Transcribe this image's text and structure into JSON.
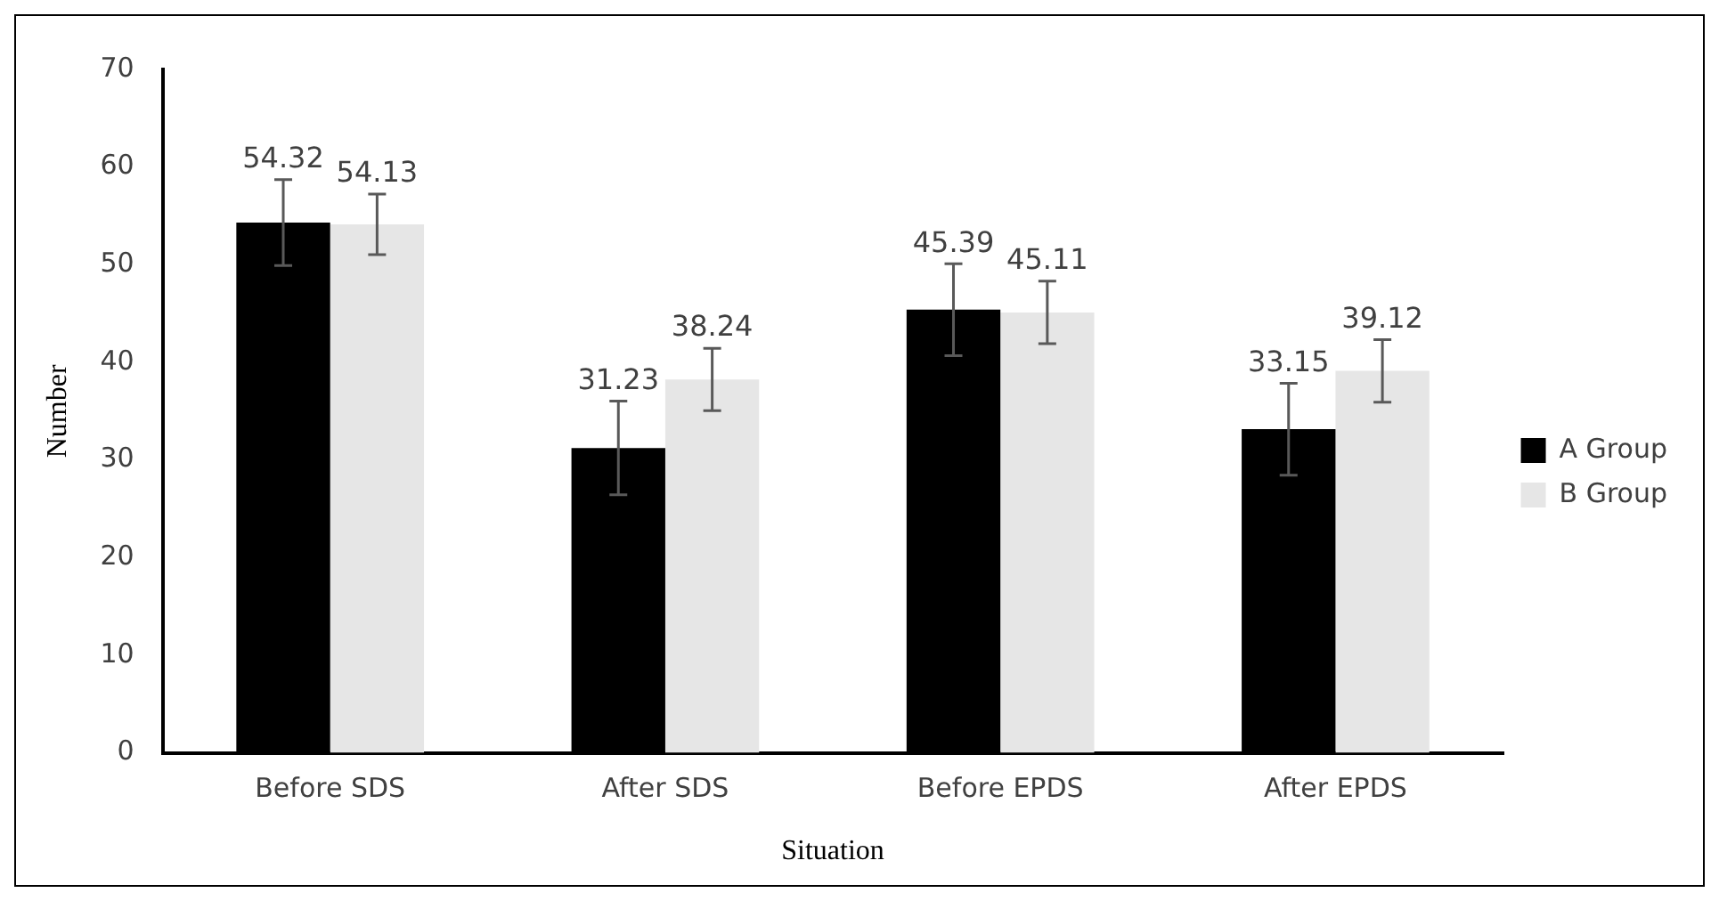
{
  "chart_data": {
    "type": "bar",
    "xlabel": "Situation",
    "ylabel": "Number",
    "categories": [
      "Before SDS",
      "After SDS",
      "Before EPDS",
      "After EPDS"
    ],
    "series": [
      {
        "name": "A Group",
        "color": "#000000",
        "values": [
          54.32,
          31.23,
          45.39,
          33.15
        ],
        "errors": [
          4.4,
          4.8,
          4.7,
          4.7
        ]
      },
      {
        "name": "B Group",
        "color": "#e6e6e6",
        "values": [
          54.13,
          38.24,
          45.11,
          39.12
        ],
        "errors": [
          3.1,
          3.2,
          3.2,
          3.2
        ]
      }
    ],
    "ylim": [
      0,
      70
    ],
    "yticks": [
      0,
      10,
      20,
      30,
      40,
      50,
      60,
      70
    ],
    "grid": false,
    "legend": "right",
    "data_labels": true
  }
}
